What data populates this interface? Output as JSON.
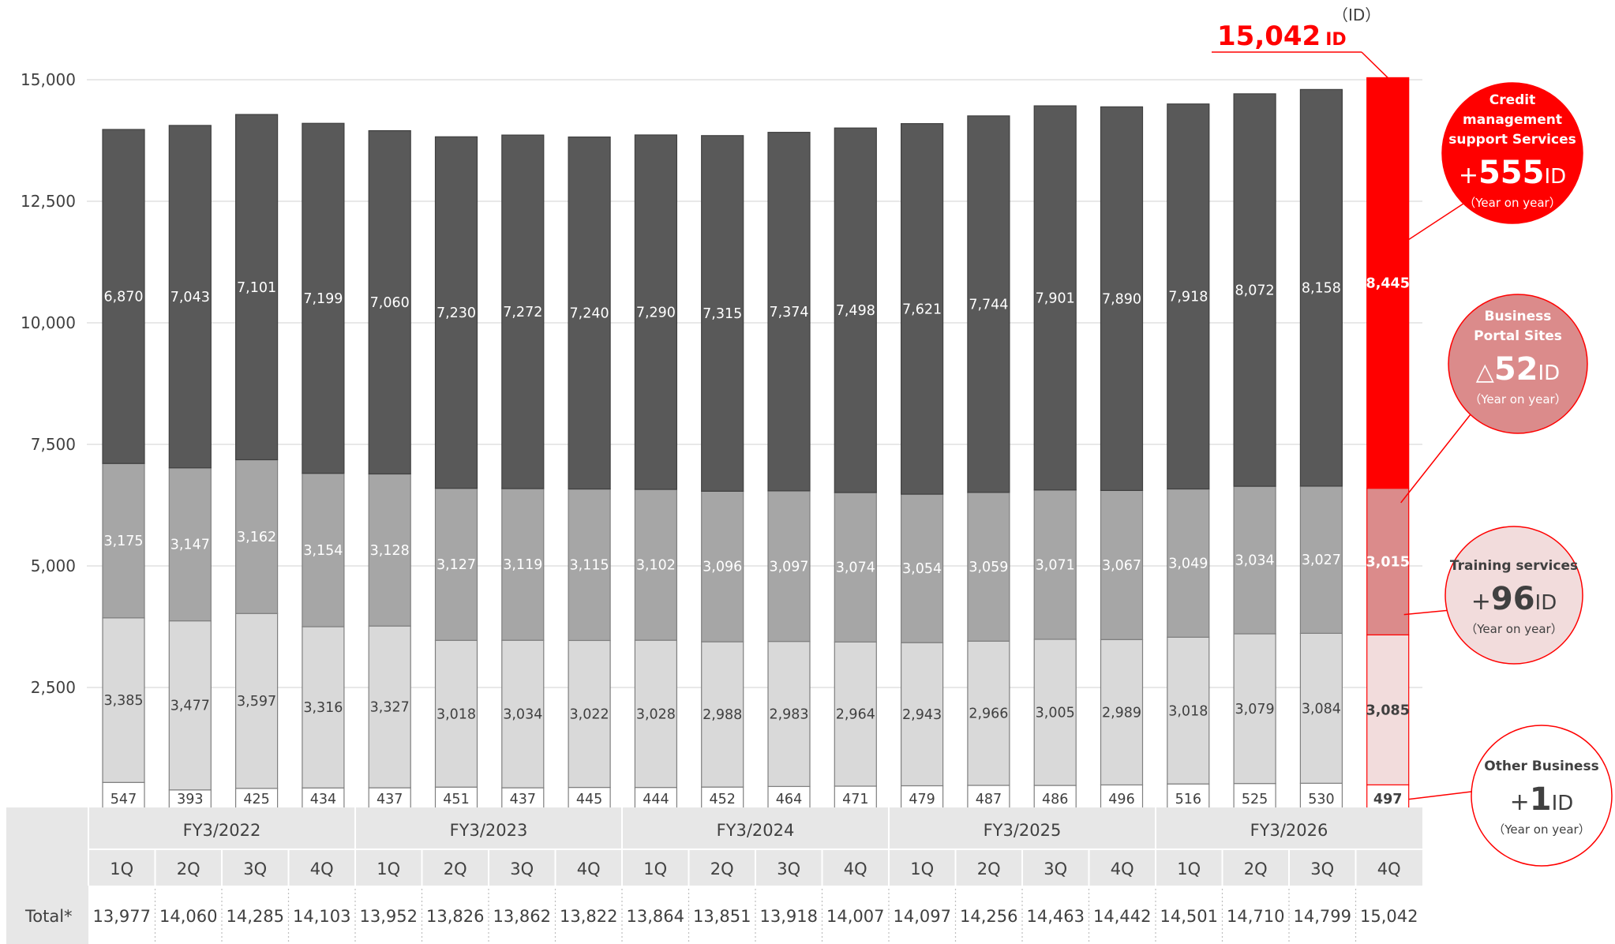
{
  "chart_data": {
    "type": "bar",
    "stacked": true,
    "ylim": [
      0,
      15000
    ],
    "yticks": [
      "15,000",
      "12,500",
      "10,000",
      "7,500",
      "5,000",
      "2,500"
    ],
    "unit_label": "（ID）",
    "categories": [
      "1Q",
      "2Q",
      "3Q",
      "4Q",
      "1Q",
      "2Q",
      "3Q",
      "4Q",
      "1Q",
      "2Q",
      "3Q",
      "4Q",
      "1Q",
      "2Q",
      "3Q",
      "4Q",
      "1Q",
      "2Q",
      "3Q",
      "4Q"
    ],
    "fiscal_years": [
      "FY3/2022",
      "FY3/2023",
      "FY3/2024",
      "FY3/2025",
      "FY3/2026"
    ],
    "series": [
      {
        "values": [
          547,
          393,
          425,
          434,
          437,
          451,
          437,
          445,
          444,
          452,
          464,
          471,
          479,
          487,
          486,
          496,
          516,
          525,
          530,
          497
        ],
        "color": "#ffffff",
        "highlight_color": "#ffffff"
      },
      {
        "values": [
          3385,
          3477,
          3597,
          3316,
          3327,
          3018,
          3034,
          3022,
          3028,
          2988,
          2983,
          2964,
          2943,
          2966,
          3005,
          2989,
          3018,
          3079,
          3084,
          3085
        ],
        "color": "#d9d9d9",
        "highlight_color": "#f2dcdc"
      },
      {
        "values": [
          3175,
          3147,
          3162,
          3154,
          3128,
          3127,
          3119,
          3115,
          3102,
          3096,
          3097,
          3074,
          3054,
          3059,
          3071,
          3067,
          3049,
          3034,
          3027,
          3015
        ],
        "color": "#a6a6a6",
        "highlight_color": "#db8b8b"
      },
      {
        "values": [
          6870,
          7043,
          7101,
          7199,
          7060,
          7230,
          7272,
          7240,
          7290,
          7315,
          7374,
          7498,
          7621,
          7744,
          7901,
          7890,
          7918,
          8072,
          8158,
          8445
        ],
        "color": "#595959",
        "highlight_color": "#ff0000"
      }
    ],
    "total_label": "Total*",
    "totals": [
      "13,977",
      "14,060",
      "14,285",
      "14,103",
      "13,952",
      "13,826",
      "13,862",
      "13,822",
      "13,864",
      "13,851",
      "13,918",
      "14,007",
      "14,097",
      "14,256",
      "14,463",
      "14,442",
      "14,501",
      "14,710",
      "14,799",
      "15,042"
    ],
    "highlight_total": {
      "number": "15,042",
      "unit": "ID"
    },
    "callouts": [
      {
        "title_lines": [
          "Credit",
          "management",
          "support Services"
        ],
        "sign": "+",
        "number": "555",
        "unit": "ID",
        "note": "（Year on year）",
        "fill": "#ff0000",
        "text": "#ffffff"
      },
      {
        "title_lines": [
          "Business",
          "Portal Sites"
        ],
        "sign": "△",
        "number": "52",
        "unit": "ID",
        "note": "（Year on year）",
        "fill": "#db8b8b",
        "text": "#ffffff"
      },
      {
        "title_lines": [
          "Training services"
        ],
        "sign": "+",
        "number": "96",
        "unit": "ID",
        "note": "（Year on year）",
        "fill": "#f2dcdc",
        "text": "#404040"
      },
      {
        "title_lines": [
          "Other Business"
        ],
        "sign": "+",
        "number": "1",
        "unit": "ID",
        "note": "（Year on year）",
        "fill": "#ffffff",
        "text": "#404040"
      }
    ]
  }
}
